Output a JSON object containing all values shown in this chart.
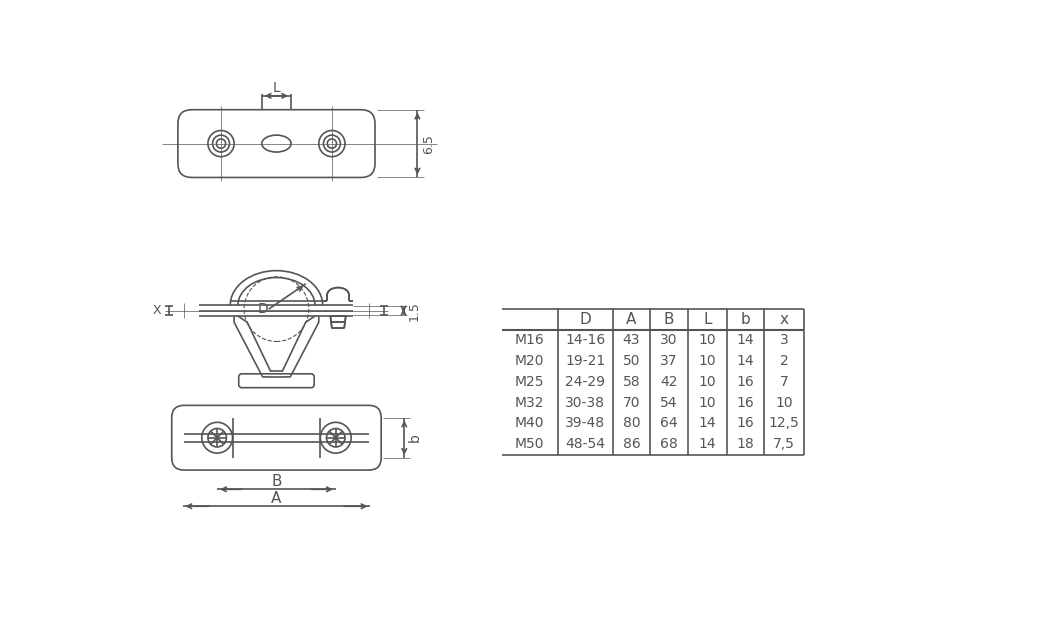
{
  "table_headers": [
    "",
    "D",
    "A",
    "B",
    "L",
    "b",
    "x"
  ],
  "table_rows": [
    [
      "M16",
      "14-16",
      "43",
      "30",
      "10",
      "14",
      "3"
    ],
    [
      "M20",
      "19-21",
      "50",
      "37",
      "10",
      "14",
      "2"
    ],
    [
      "M25",
      "24-29",
      "58",
      "42",
      "10",
      "16",
      "7"
    ],
    [
      "M32",
      "30-38",
      "70",
      "54",
      "10",
      "16",
      "10"
    ],
    [
      "M40",
      "39-48",
      "80",
      "64",
      "14",
      "16",
      "12,5"
    ],
    [
      "M50",
      "48-54",
      "86",
      "68",
      "14",
      "18",
      "7,5"
    ]
  ],
  "dim_65": "6.5",
  "dim_15": "1.5",
  "label_L": "L",
  "label_D": "D",
  "label_B": "B",
  "label_A": "A",
  "label_b": "b",
  "label_X": "X",
  "bg_color": "#ffffff",
  "line_color": "#555555",
  "text_color": "#555555"
}
